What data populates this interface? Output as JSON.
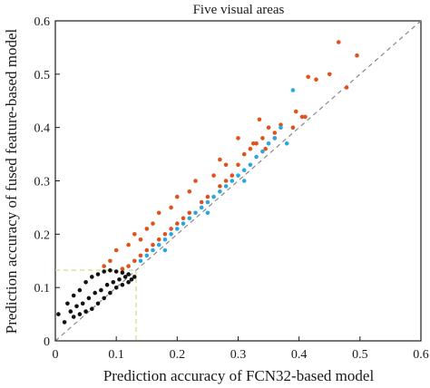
{
  "chart_data": {
    "type": "scatter",
    "title": "Five visual areas",
    "xlabel": "Prediction accuracy of FCN32-based model",
    "ylabel": "Prediction accuracy of fused feature-based model",
    "xlim": [
      0,
      0.6
    ],
    "ylim": [
      0,
      0.6
    ],
    "x_ticks": [
      "0",
      "0.1",
      "0.2",
      "0.3",
      "0.4",
      "0.5",
      "0.6"
    ],
    "y_ticks": [
      "0",
      "0.1",
      "0.2",
      "0.3",
      "0.4",
      "0.5",
      "0.6"
    ],
    "grid": false,
    "legend": "none",
    "reference_line": {
      "style": "dashed",
      "color": "#888888",
      "from": [
        0,
        0
      ],
      "to": [
        0.6,
        0.6
      ]
    },
    "threshold": {
      "x": 0.132,
      "y": 0.132,
      "style": "dashed",
      "color": "#c9dd8c"
    },
    "series": [
      {
        "color": "#e0521c",
        "points": [
          [
            0.465,
            0.56
          ],
          [
            0.495,
            0.535
          ],
          [
            0.415,
            0.495
          ],
          [
            0.428,
            0.49
          ],
          [
            0.478,
            0.475
          ],
          [
            0.45,
            0.5
          ],
          [
            0.39,
            0.4
          ],
          [
            0.35,
            0.4
          ],
          [
            0.335,
            0.415
          ],
          [
            0.37,
            0.405
          ],
          [
            0.36,
            0.39
          ],
          [
            0.325,
            0.37
          ],
          [
            0.41,
            0.42
          ],
          [
            0.395,
            0.43
          ],
          [
            0.405,
            0.42
          ],
          [
            0.3,
            0.33
          ],
          [
            0.32,
            0.36
          ],
          [
            0.29,
            0.31
          ],
          [
            0.28,
            0.3
          ],
          [
            0.27,
            0.29
          ],
          [
            0.25,
            0.27
          ],
          [
            0.24,
            0.26
          ],
          [
            0.22,
            0.24
          ],
          [
            0.21,
            0.23
          ],
          [
            0.2,
            0.22
          ],
          [
            0.19,
            0.21
          ],
          [
            0.18,
            0.2
          ],
          [
            0.17,
            0.19
          ],
          [
            0.16,
            0.18
          ],
          [
            0.15,
            0.17
          ],
          [
            0.14,
            0.16
          ],
          [
            0.13,
            0.15
          ],
          [
            0.12,
            0.14
          ],
          [
            0.11,
            0.135
          ],
          [
            0.3,
            0.38
          ],
          [
            0.27,
            0.34
          ],
          [
            0.23,
            0.3
          ],
          [
            0.2,
            0.27
          ],
          [
            0.17,
            0.24
          ],
          [
            0.15,
            0.21
          ],
          [
            0.13,
            0.2
          ],
          [
            0.12,
            0.18
          ],
          [
            0.1,
            0.17
          ],
          [
            0.09,
            0.15
          ],
          [
            0.08,
            0.14
          ],
          [
            0.26,
            0.31
          ],
          [
            0.28,
            0.33
          ],
          [
            0.31,
            0.35
          ],
          [
            0.33,
            0.37
          ],
          [
            0.34,
            0.38
          ],
          [
            0.22,
            0.28
          ],
          [
            0.19,
            0.25
          ],
          [
            0.16,
            0.22
          ],
          [
            0.14,
            0.19
          ],
          [
            0.36,
            0.38
          ],
          [
            0.345,
            0.36
          ]
        ]
      },
      {
        "color": "#2aa7df",
        "points": [
          [
            0.39,
            0.47
          ],
          [
            0.37,
            0.4
          ],
          [
            0.36,
            0.38
          ],
          [
            0.35,
            0.37
          ],
          [
            0.34,
            0.355
          ],
          [
            0.33,
            0.345
          ],
          [
            0.32,
            0.33
          ],
          [
            0.31,
            0.32
          ],
          [
            0.3,
            0.31
          ],
          [
            0.29,
            0.3
          ],
          [
            0.28,
            0.29
          ],
          [
            0.27,
            0.28
          ],
          [
            0.26,
            0.27
          ],
          [
            0.25,
            0.26
          ],
          [
            0.24,
            0.25
          ],
          [
            0.23,
            0.24
          ],
          [
            0.22,
            0.23
          ],
          [
            0.21,
            0.22
          ],
          [
            0.2,
            0.21
          ],
          [
            0.19,
            0.2
          ],
          [
            0.18,
            0.19
          ],
          [
            0.17,
            0.18
          ],
          [
            0.16,
            0.17
          ],
          [
            0.15,
            0.16
          ],
          [
            0.14,
            0.15
          ],
          [
            0.18,
            0.17
          ],
          [
            0.25,
            0.24
          ],
          [
            0.31,
            0.3
          ],
          [
            0.38,
            0.37
          ]
        ]
      },
      {
        "color": "#111111",
        "points": [
          [
            0.005,
            0.05
          ],
          [
            0.015,
            0.035
          ],
          [
            0.02,
            0.07
          ],
          [
            0.03,
            0.085
          ],
          [
            0.04,
            0.095
          ],
          [
            0.05,
            0.11
          ],
          [
            0.06,
            0.12
          ],
          [
            0.07,
            0.125
          ],
          [
            0.08,
            0.13
          ],
          [
            0.09,
            0.132
          ],
          [
            0.1,
            0.13
          ],
          [
            0.11,
            0.128
          ],
          [
            0.12,
            0.125
          ],
          [
            0.13,
            0.12
          ],
          [
            0.025,
            0.055
          ],
          [
            0.035,
            0.065
          ],
          [
            0.045,
            0.07
          ],
          [
            0.055,
            0.08
          ],
          [
            0.065,
            0.09
          ],
          [
            0.075,
            0.095
          ],
          [
            0.085,
            0.105
          ],
          [
            0.095,
            0.11
          ],
          [
            0.105,
            0.115
          ],
          [
            0.115,
            0.12
          ],
          [
            0.03,
            0.045
          ],
          [
            0.04,
            0.05
          ],
          [
            0.05,
            0.055
          ],
          [
            0.06,
            0.06
          ],
          [
            0.07,
            0.07
          ],
          [
            0.08,
            0.08
          ],
          [
            0.09,
            0.09
          ],
          [
            0.1,
            0.1
          ],
          [
            0.11,
            0.105
          ],
          [
            0.12,
            0.11
          ],
          [
            0.125,
            0.115
          ]
        ]
      }
    ]
  }
}
